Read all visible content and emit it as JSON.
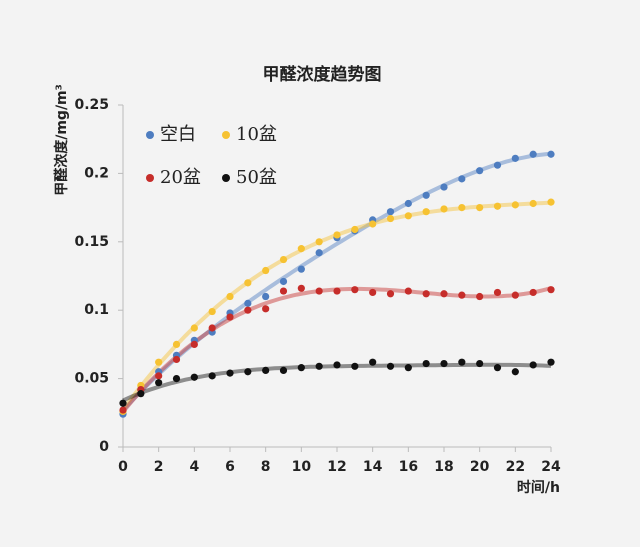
{
  "chart_data": {
    "type": "scatter",
    "title": "甲醛浓度趋势图",
    "x_label": "时间/h",
    "y_label": "甲醛浓度/mg/m³",
    "x": [
      0,
      1,
      2,
      3,
      4,
      5,
      6,
      7,
      8,
      9,
      10,
      11,
      12,
      13,
      14,
      15,
      16,
      17,
      18,
      19,
      20,
      21,
      22,
      23,
      24
    ],
    "series": [
      {
        "name": "空白",
        "color": "#4e7dc0",
        "values": [
          0.024,
          0.042,
          0.055,
          0.067,
          0.078,
          0.084,
          0.098,
          0.105,
          0.11,
          0.121,
          0.13,
          0.142,
          0.153,
          0.158,
          0.166,
          0.172,
          0.178,
          0.184,
          0.19,
          0.196,
          0.202,
          0.206,
          0.211,
          0.214,
          0.214
        ]
      },
      {
        "name": "10盆",
        "color": "#f6c232",
        "values": [
          0.026,
          0.045,
          0.062,
          0.075,
          0.087,
          0.099,
          0.11,
          0.12,
          0.129,
          0.137,
          0.145,
          0.15,
          0.155,
          0.159,
          0.163,
          0.167,
          0.169,
          0.172,
          0.174,
          0.175,
          0.175,
          0.176,
          0.177,
          0.178,
          0.179
        ]
      },
      {
        "name": "20盆",
        "color": "#c62d2a",
        "values": [
          0.027,
          0.042,
          0.052,
          0.064,
          0.075,
          0.087,
          0.095,
          0.1,
          0.101,
          0.114,
          0.116,
          0.114,
          0.114,
          0.115,
          0.113,
          0.112,
          0.114,
          0.112,
          0.112,
          0.111,
          0.11,
          0.113,
          0.111,
          0.113,
          0.115
        ]
      },
      {
        "name": "50盆",
        "color": "#111111",
        "values": [
          0.032,
          0.039,
          0.047,
          0.05,
          0.051,
          0.052,
          0.054,
          0.055,
          0.056,
          0.056,
          0.058,
          0.059,
          0.06,
          0.059,
          0.062,
          0.059,
          0.058,
          0.061,
          0.061,
          0.062,
          0.061,
          0.058,
          0.055,
          0.06,
          0.062
        ]
      }
    ],
    "xlim": [
      0,
      24
    ],
    "xticks": [
      0,
      2,
      4,
      6,
      8,
      10,
      12,
      14,
      16,
      18,
      20,
      22,
      24
    ],
    "ylim": [
      0,
      0.25
    ],
    "yticks": [
      0,
      0.05,
      0.1,
      0.15,
      0.2,
      0.25
    ],
    "trendline": true,
    "legend": "upper left"
  }
}
